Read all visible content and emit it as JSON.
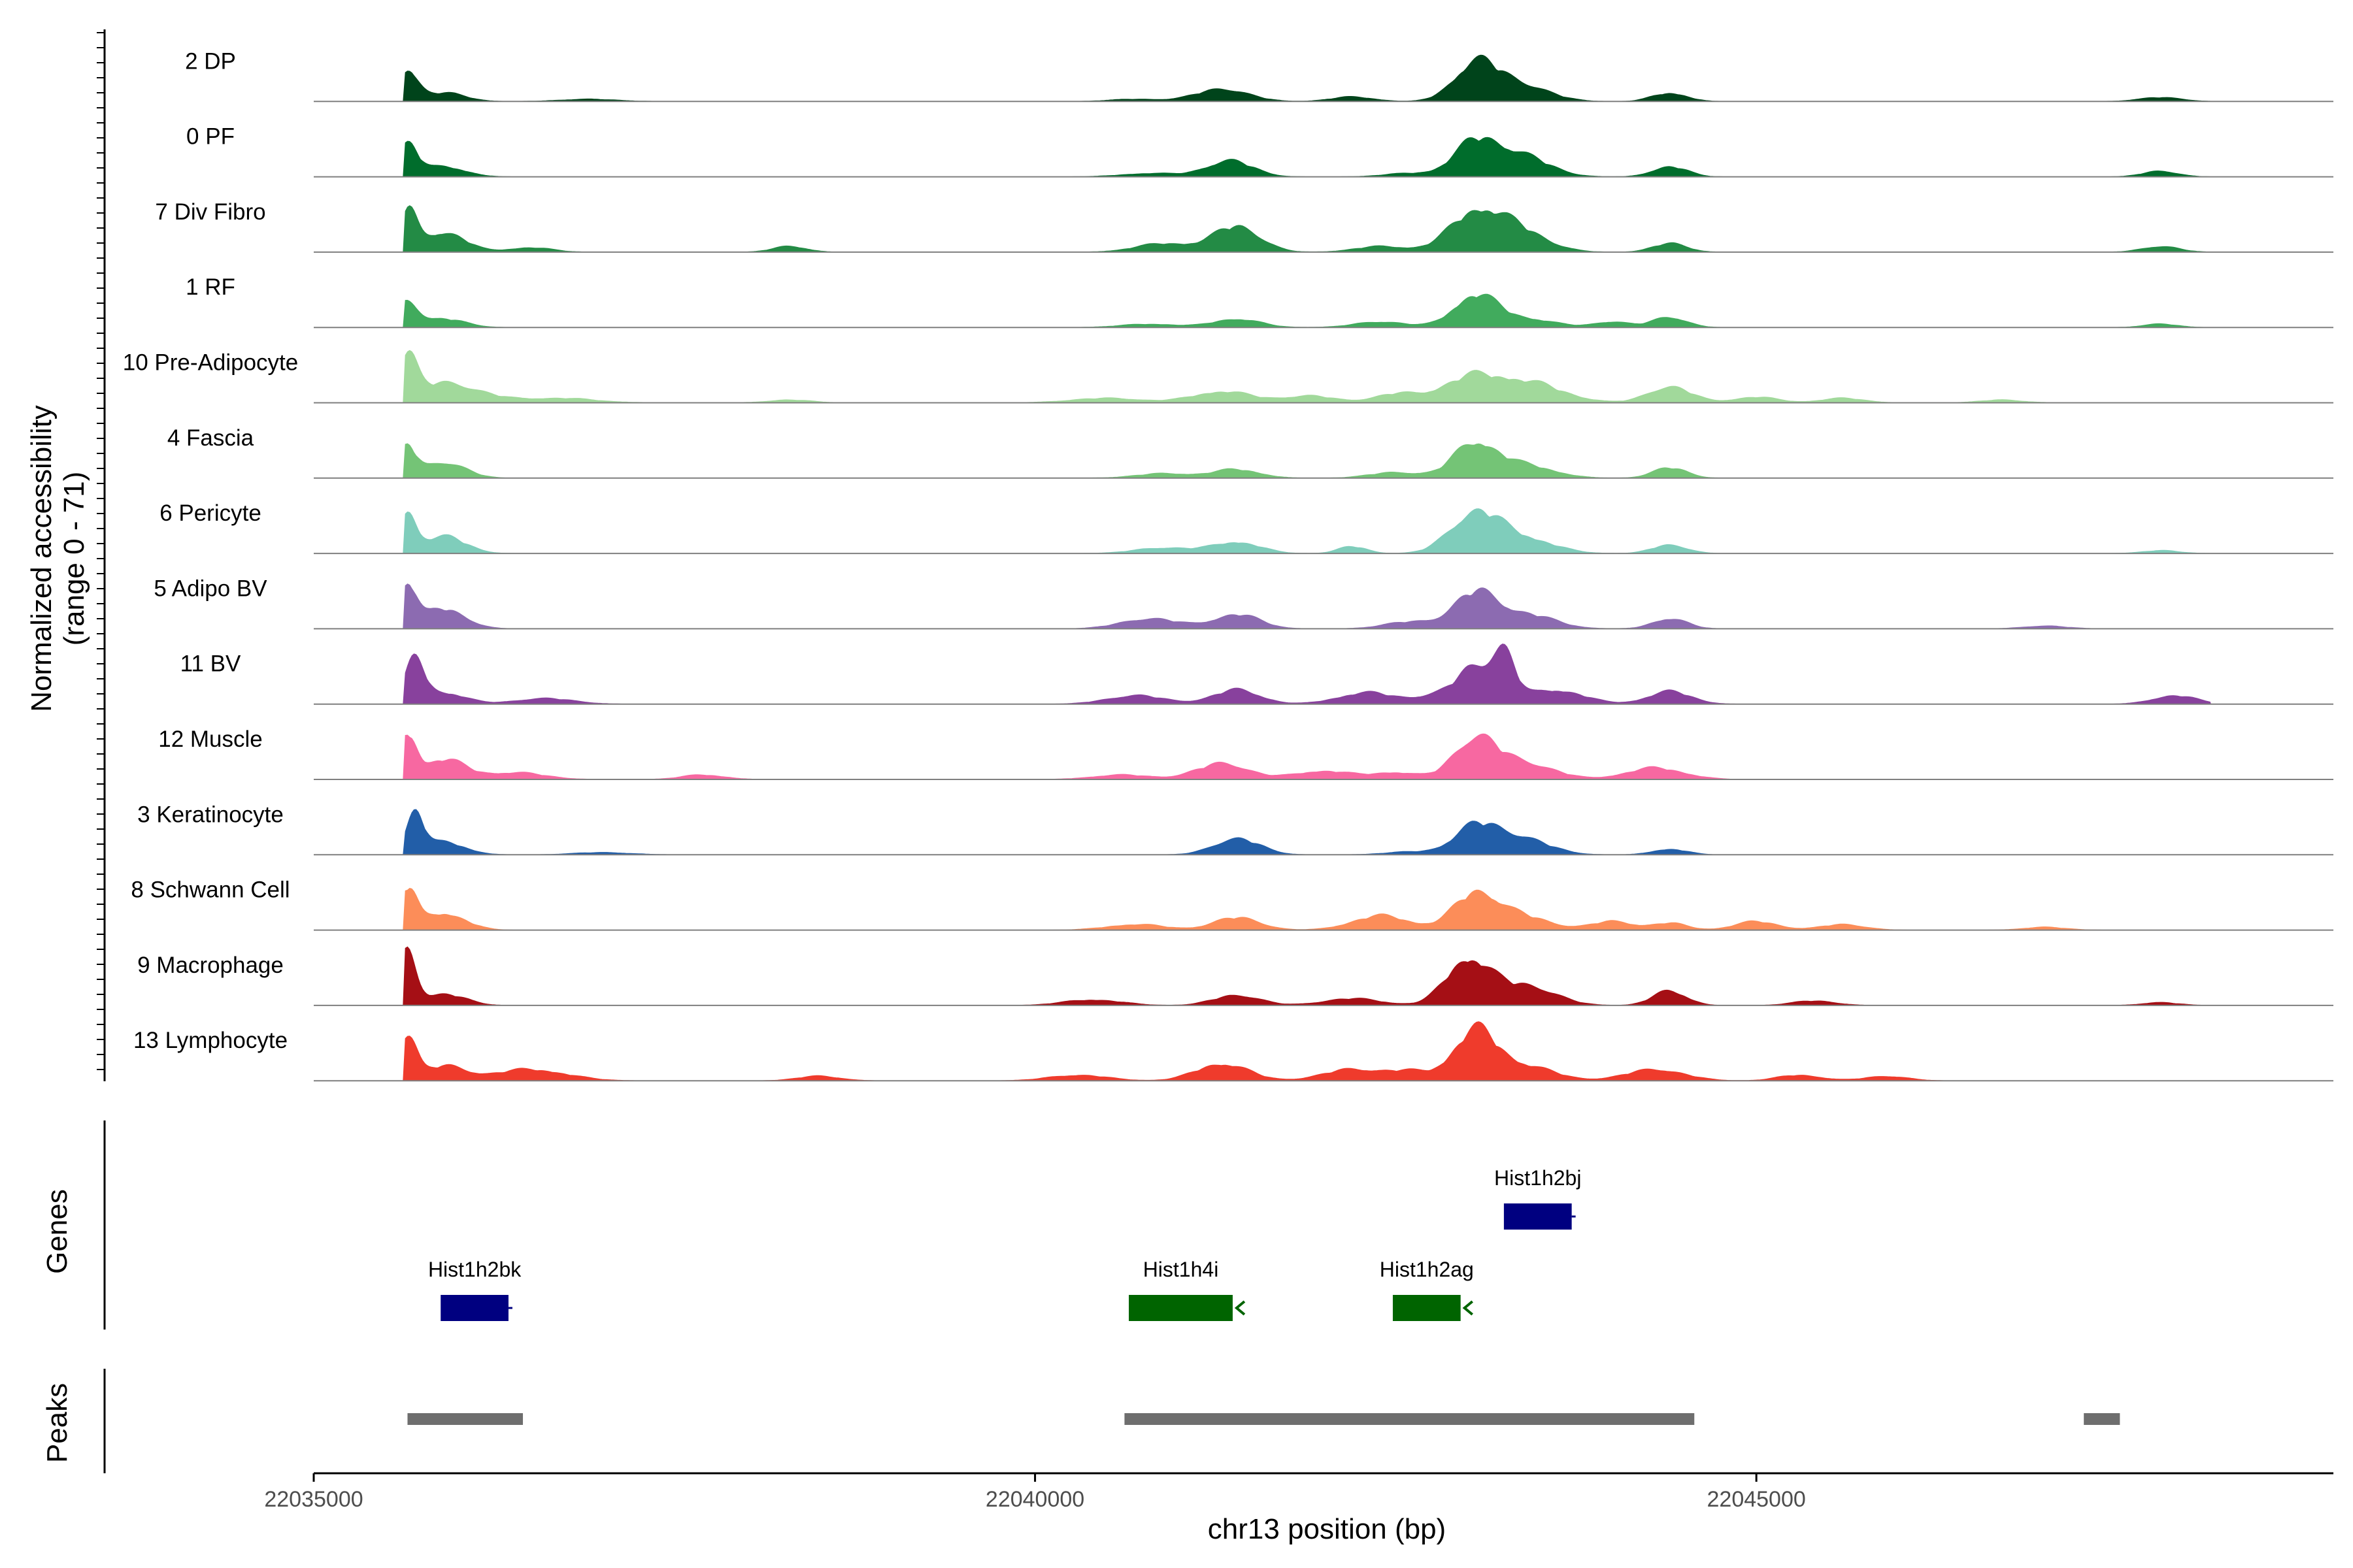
{
  "chart_data": {
    "type": "area",
    "title": "",
    "ylabel": "Normalized accessibility",
    "ylabel_range": "(range 0 - 71)",
    "xlabel": "chr13 position (bp)",
    "chromosome": "chr13",
    "xlim": [
      22035000,
      22049000
    ],
    "ylim": [
      0,
      71
    ],
    "x_ticks": [
      22035000,
      22040000,
      22045000
    ],
    "x_tick_labels": [
      "22035000",
      "22040000",
      "22045000"
    ],
    "series": [
      {
        "name": "2 DP",
        "color": "#00441b",
        "peaks": [
          [
            22035650,
            55,
            70
          ],
          [
            22035900,
            15,
            150
          ],
          [
            22036900,
            4,
            200
          ],
          [
            22040700,
            4,
            180
          ],
          [
            22041300,
            22,
            180
          ],
          [
            22042200,
            8,
            150
          ],
          [
            22043050,
            62,
            150
          ],
          [
            22043350,
            30,
            200
          ],
          [
            22044400,
            15,
            120
          ],
          [
            22047800,
            7,
            150
          ]
        ]
      },
      {
        "name": "0 PF",
        "color": "#006d2c",
        "peaks": [
          [
            22035650,
            55,
            70
          ],
          [
            22035900,
            18,
            150
          ],
          [
            22040800,
            6,
            200
          ],
          [
            22041350,
            28,
            160
          ],
          [
            22042600,
            6,
            180
          ],
          [
            22043050,
            55,
            150
          ],
          [
            22043350,
            38,
            200
          ],
          [
            22044400,
            18,
            120
          ],
          [
            22047800,
            10,
            120
          ]
        ]
      },
      {
        "name": "7 Div Fibro",
        "color": "#238b45",
        "peaks": [
          [
            22035650,
            70,
            60
          ],
          [
            22035900,
            35,
            150
          ],
          [
            22036500,
            8,
            150
          ],
          [
            22038300,
            10,
            120
          ],
          [
            22040900,
            15,
            200
          ],
          [
            22041400,
            45,
            160
          ],
          [
            22042400,
            10,
            180
          ],
          [
            22043050,
            65,
            180
          ],
          [
            22043350,
            35,
            200
          ],
          [
            22044400,
            15,
            120
          ],
          [
            22047800,
            10,
            130
          ]
        ]
      },
      {
        "name": "1 RF",
        "color": "#41ab5d",
        "peaks": [
          [
            22035650,
            45,
            70
          ],
          [
            22035900,
            15,
            150
          ],
          [
            22040800,
            6,
            200
          ],
          [
            22041400,
            15,
            160
          ],
          [
            22042400,
            10,
            180
          ],
          [
            22043050,
            55,
            150
          ],
          [
            22043400,
            15,
            200
          ],
          [
            22044000,
            10,
            120
          ],
          [
            22044400,
            18,
            120
          ],
          [
            22047800,
            6,
            120
          ]
        ]
      },
      {
        "name": "10 Pre-Adipocyte",
        "color": "#a1d99b",
        "peaks": [
          [
            22035650,
            70,
            60
          ],
          [
            22035900,
            35,
            250
          ],
          [
            22036700,
            8,
            250
          ],
          [
            22038300,
            5,
            150
          ],
          [
            22040500,
            8,
            250
          ],
          [
            22041300,
            20,
            200
          ],
          [
            22041900,
            12,
            180
          ],
          [
            22042500,
            15,
            150
          ],
          [
            22043000,
            38,
            200
          ],
          [
            22043400,
            35,
            250
          ],
          [
            22044400,
            28,
            150
          ],
          [
            22045000,
            10,
            150
          ],
          [
            22045600,
            8,
            150
          ],
          [
            22046700,
            5,
            150
          ]
        ]
      },
      {
        "name": "4 Fascia",
        "color": "#74c476",
        "peaks": [
          [
            22035650,
            50,
            60
          ],
          [
            22035900,
            28,
            150
          ],
          [
            22040900,
            8,
            200
          ],
          [
            22041400,
            15,
            160
          ],
          [
            22042500,
            10,
            180
          ],
          [
            22043050,
            60,
            150
          ],
          [
            22043400,
            22,
            200
          ],
          [
            22044400,
            18,
            120
          ]
        ]
      },
      {
        "name": "6 Pericyte",
        "color": "#7fcdbb",
        "peaks": [
          [
            22035650,
            65,
            60
          ],
          [
            22035900,
            30,
            150
          ],
          [
            22040900,
            10,
            200
          ],
          [
            22041400,
            20,
            160
          ],
          [
            22042200,
            12,
            100
          ],
          [
            22043050,
            70,
            170
          ],
          [
            22043400,
            25,
            200
          ],
          [
            22044400,
            15,
            120
          ],
          [
            22047800,
            5,
            130
          ]
        ]
      },
      {
        "name": "5 Adipo BV",
        "color": "#8c6bb1",
        "peaks": [
          [
            22035650,
            75,
            60
          ],
          [
            22035900,
            35,
            150
          ],
          [
            22040800,
            18,
            200
          ],
          [
            22041400,
            25,
            160
          ],
          [
            22042600,
            12,
            180
          ],
          [
            22043050,
            60,
            150
          ],
          [
            22043400,
            25,
            200
          ],
          [
            22044400,
            18,
            120
          ],
          [
            22047000,
            5,
            150
          ]
        ]
      },
      {
        "name": "11 BV",
        "color": "#88419d",
        "peaks": [
          [
            22035700,
            70,
            70
          ],
          [
            22035900,
            20,
            150
          ],
          [
            22036600,
            10,
            200
          ],
          [
            22040700,
            15,
            200
          ],
          [
            22041400,
            25,
            160
          ],
          [
            22042300,
            20,
            200
          ],
          [
            22042800,
            15,
            150
          ],
          [
            22043050,
            60,
            120
          ],
          [
            22043250,
            80,
            80
          ],
          [
            22043600,
            25,
            200
          ],
          [
            22044400,
            22,
            150
          ],
          [
            22047900,
            15,
            150
          ]
        ]
      },
      {
        "name": "12 Muscle",
        "color": "#f768a1",
        "peaks": [
          [
            22035650,
            75,
            60
          ],
          [
            22035900,
            35,
            150
          ],
          [
            22036400,
            12,
            200
          ],
          [
            22037700,
            8,
            150
          ],
          [
            22040600,
            8,
            200
          ],
          [
            22041300,
            28,
            180
          ],
          [
            22042000,
            15,
            200
          ],
          [
            22042500,
            12,
            150
          ],
          [
            22043050,
            70,
            150
          ],
          [
            22043400,
            28,
            200
          ],
          [
            22044300,
            20,
            200
          ]
        ]
      },
      {
        "name": "3 Keratinocyte",
        "color": "#225ea8",
        "peaks": [
          [
            22035700,
            70,
            60
          ],
          [
            22035900,
            22,
            150
          ],
          [
            22037000,
            4,
            200
          ],
          [
            22041400,
            28,
            160
          ],
          [
            22042600,
            5,
            180
          ],
          [
            22043050,
            45,
            150
          ],
          [
            22043350,
            30,
            200
          ],
          [
            22044400,
            10,
            120
          ]
        ]
      },
      {
        "name": "8 Schwann Cell",
        "color": "#fc8d59",
        "peaks": [
          [
            22035650,
            70,
            60
          ],
          [
            22035900,
            30,
            150
          ],
          [
            22040700,
            10,
            200
          ],
          [
            22041400,
            22,
            160
          ],
          [
            22042400,
            25,
            200
          ],
          [
            22043050,
            60,
            150
          ],
          [
            22043350,
            25,
            200
          ],
          [
            22044000,
            15,
            150
          ],
          [
            22044400,
            12,
            120
          ],
          [
            22045000,
            15,
            150
          ],
          [
            22045600,
            10,
            150
          ],
          [
            22047000,
            5,
            150
          ]
        ]
      },
      {
        "name": "9 Macrophage",
        "color": "#a50f15",
        "peaks": [
          [
            22035650,
            90,
            60
          ],
          [
            22035900,
            20,
            150
          ],
          [
            22040400,
            10,
            200
          ],
          [
            22041400,
            18,
            160
          ],
          [
            22042200,
            12,
            200
          ],
          [
            22043000,
            80,
            150
          ],
          [
            22043400,
            35,
            200
          ],
          [
            22044400,
            25,
            120
          ],
          [
            22045400,
            8,
            150
          ],
          [
            22047800,
            5,
            130
          ]
        ]
      },
      {
        "name": "13 Lymphocyte",
        "color": "#ef3b2c",
        "peaks": [
          [
            22035650,
            80,
            60
          ],
          [
            22035900,
            25,
            150
          ],
          [
            22036500,
            20,
            250
          ],
          [
            22038500,
            8,
            150
          ],
          [
            22040300,
            10,
            200
          ],
          [
            22041300,
            30,
            180
          ],
          [
            22042200,
            20,
            200
          ],
          [
            22042600,
            15,
            150
          ],
          [
            22043050,
            85,
            150
          ],
          [
            22043400,
            25,
            200
          ],
          [
            22044300,
            20,
            200
          ],
          [
            22045300,
            10,
            150
          ],
          [
            22045900,
            8,
            150
          ]
        ]
      }
    ],
    "genes": [
      {
        "name": "Hist1h2bj",
        "start": 22043250,
        "end": 22043720,
        "strand": "+",
        "color": "#000080",
        "row": 1
      },
      {
        "name": "Hist1h2bk",
        "start": 22035880,
        "end": 22036350,
        "strand": "+",
        "color": "#000080",
        "row": 2
      },
      {
        "name": "Hist1h4i",
        "start": 22040650,
        "end": 22041370,
        "strand": "-",
        "color": "#006400",
        "row": 2
      },
      {
        "name": "Hist1h2ag",
        "start": 22042480,
        "end": 22042950,
        "strand": "-",
        "color": "#006400",
        "row": 2
      }
    ],
    "peaks_track": [
      [
        22035650,
        22036450
      ],
      [
        22040620,
        22044570
      ],
      [
        22047270,
        22047520
      ]
    ],
    "genes_label": "Genes",
    "peaks_label": "Peaks"
  }
}
